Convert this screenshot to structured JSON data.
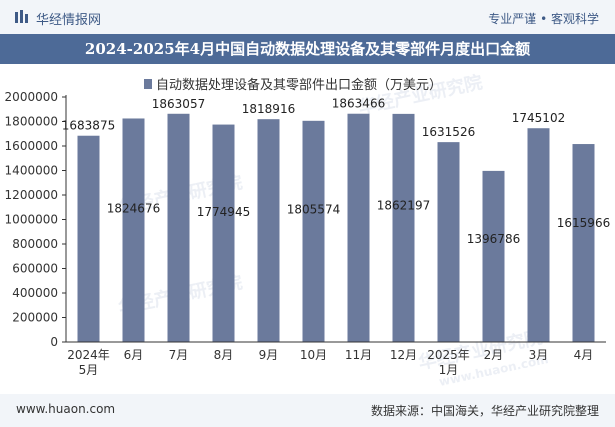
{
  "header": {
    "brand": "华经情报网",
    "tagline": "专业严谨 • 客观科学",
    "title": "2024-2025年4月中国自动数据处理设备及其零部件月度出口金额"
  },
  "footer": {
    "site": "www.huaon.com",
    "source": "数据来源：中国海关，华经产业研究院整理"
  },
  "watermark": {
    "text": "华经产业研究院",
    "url": "www.huaon.com"
  },
  "colors": {
    "bar": "#6b7a9c",
    "header_band": "#4d6a97"
  },
  "chart_data": {
    "type": "bar",
    "title": "2024-2025年4月中国自动数据处理设备及其零部件月度出口金额",
    "legend": "自动数据处理设备及其零部件出口金额（万美元）",
    "legend_position": "top-center",
    "categories": [
      [
        "2024年",
        "5月"
      ],
      [
        "6月"
      ],
      [
        "7月"
      ],
      [
        "8月"
      ],
      [
        "9月"
      ],
      [
        "10月"
      ],
      [
        "11月"
      ],
      [
        "12月"
      ],
      [
        "2025年",
        "1月"
      ],
      [
        "2月"
      ],
      [
        "3月"
      ],
      [
        "4月"
      ]
    ],
    "values": [
      1683875,
      1824676,
      1863057,
      1774945,
      1818916,
      1805574,
      1863466,
      1862197,
      1631526,
      1396786,
      1745102,
      1615966
    ],
    "label_labels": [
      "1683875",
      "1824676",
      "1863057",
      "1774945",
      "1818916",
      "1805574",
      "1863466",
      "1862197",
      "1631526",
      "1396786",
      "1745102",
      "1615966"
    ],
    "label_placement": [
      "top",
      "inside",
      "top",
      "inside",
      "top",
      "inside",
      "top",
      "inside",
      "top",
      "inside",
      "top",
      "inside"
    ],
    "ylim": [
      0,
      2000000
    ],
    "yticks": [
      0,
      200000,
      400000,
      600000,
      800000,
      1000000,
      1200000,
      1400000,
      1600000,
      1800000,
      2000000
    ],
    "grid": false,
    "xlabel": "",
    "ylabel": ""
  }
}
